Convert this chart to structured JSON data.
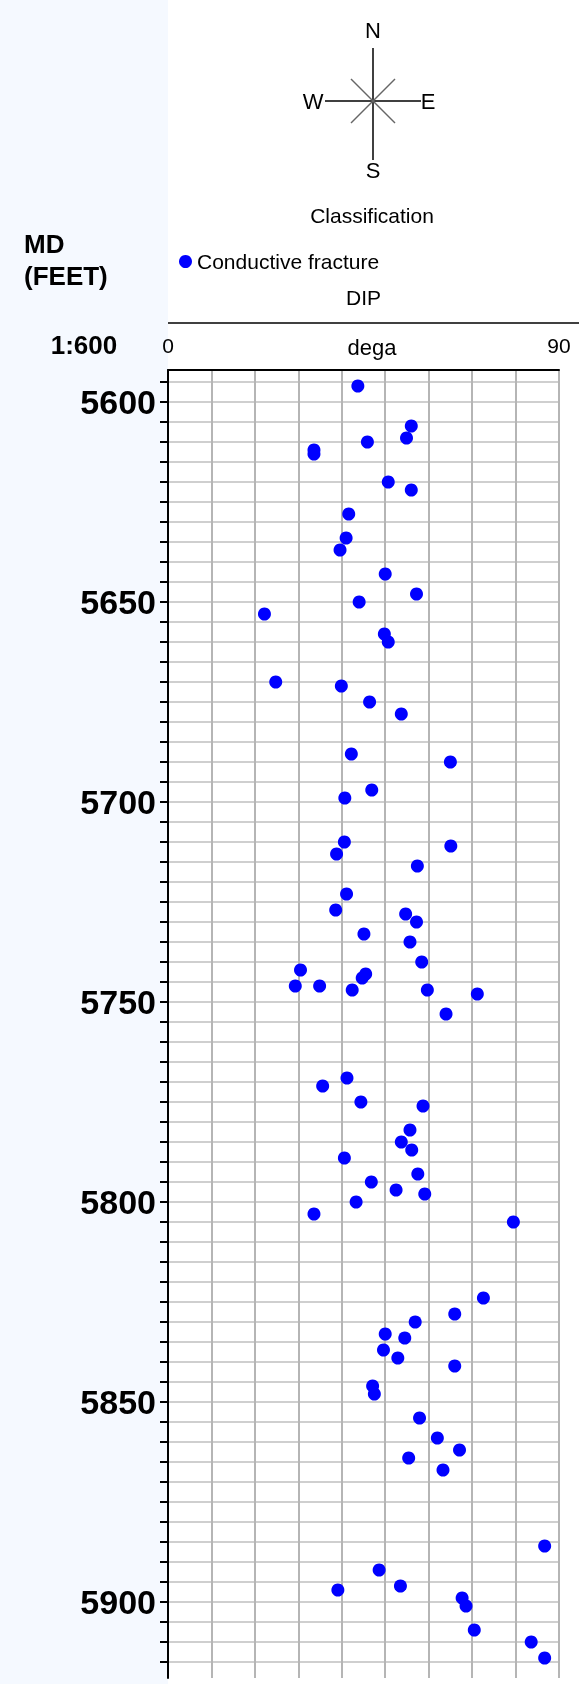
{
  "chart_data": {
    "type": "scatter",
    "ylabel": "MD (FEET)",
    "xlabel": "DIP",
    "legend_title": "Classification",
    "annotations": [
      "N",
      "E",
      "S",
      "W",
      "dega",
      "1:600"
    ],
    "xlim": [
      0,
      90
    ],
    "xticks": [
      0,
      {
        "value": 10,
        "label": null
      },
      {
        "value": 20,
        "label": null
      },
      {
        "value": 30,
        "label": null
      },
      {
        "value": 40,
        "label": null
      },
      {
        "value": 50,
        "label": null
      },
      {
        "value": 60,
        "label": null
      },
      {
        "value": 70,
        "label": null
      },
      {
        "value": 80,
        "label": null
      },
      90
    ],
    "ylim": [
      5919,
      5592
    ],
    "yticks": [
      {
        "value": 5595,
        "label": null
      },
      5600,
      {
        "value": 5605,
        "label": null
      },
      {
        "value": 5610,
        "label": null
      },
      {
        "value": 5615,
        "label": null
      },
      {
        "value": 5620,
        "label": null
      },
      {
        "value": 5625,
        "label": null
      },
      {
        "value": 5630,
        "label": null
      },
      {
        "value": 5635,
        "label": null
      },
      {
        "value": 5640,
        "label": null
      },
      {
        "value": 5645,
        "label": null
      },
      5650,
      {
        "value": 5655,
        "label": null
      },
      {
        "value": 5660,
        "label": null
      },
      {
        "value": 5665,
        "label": null
      },
      {
        "value": 5670,
        "label": null
      },
      {
        "value": 5675,
        "label": null
      },
      {
        "value": 5680,
        "label": null
      },
      {
        "value": 5685,
        "label": null
      },
      {
        "value": 5690,
        "label": null
      },
      {
        "value": 5695,
        "label": null
      },
      5700,
      {
        "value": 5705,
        "label": null
      },
      {
        "value": 5710,
        "label": null
      },
      {
        "value": 5715,
        "label": null
      },
      {
        "value": 5720,
        "label": null
      },
      {
        "value": 5725,
        "label": null
      },
      {
        "value": 5730,
        "label": null
      },
      {
        "value": 5735,
        "label": null
      },
      {
        "value": 5740,
        "label": null
      },
      {
        "value": 5745,
        "label": null
      },
      5750,
      {
        "value": 5755,
        "label": null
      },
      {
        "value": 5760,
        "label": null
      },
      {
        "value": 5765,
        "label": null
      },
      {
        "value": 5770,
        "label": null
      },
      {
        "value": 5775,
        "label": null
      },
      {
        "value": 5780,
        "label": null
      },
      {
        "value": 5785,
        "label": null
      },
      {
        "value": 5790,
        "label": null
      },
      {
        "value": 5795,
        "label": null
      },
      5800,
      {
        "value": 5805,
        "label": null
      },
      {
        "value": 5810,
        "label": null
      },
      {
        "value": 5815,
        "label": null
      },
      {
        "value": 5820,
        "label": null
      },
      {
        "value": 5825,
        "label": null
      },
      {
        "value": 5830,
        "label": null
      },
      {
        "value": 5835,
        "label": null
      },
      {
        "value": 5840,
        "label": null
      },
      {
        "value": 5845,
        "label": null
      },
      5850,
      {
        "value": 5855,
        "label": null
      },
      {
        "value": 5860,
        "label": null
      },
      {
        "value": 5865,
        "label": null
      },
      {
        "value": 5870,
        "label": null
      },
      {
        "value": 5875,
        "label": null
      },
      {
        "value": 5880,
        "label": null
      },
      {
        "value": 5885,
        "label": null
      },
      {
        "value": 5890,
        "label": null
      },
      {
        "value": 5895,
        "label": null
      },
      5900,
      {
        "value": 5905,
        "label": null
      },
      {
        "value": 5910,
        "label": null
      },
      {
        "value": 5915,
        "label": null
      }
    ],
    "grid": true,
    "legend": "top",
    "marker": "circle",
    "series": [
      {
        "name": "Conductive fracture",
        "color": "#0000ff",
        "x": [
          43.7,
          56,
          54.9,
          45.9,
          33.6,
          33.6,
          50.7,
          56,
          41.6,
          41,
          39.6,
          50,
          57.2,
          44,
          22.2,
          49.8,
          50.7,
          24.8,
          39.9,
          46.4,
          53.7,
          42.2,
          65,
          46.9,
          40.7,
          40.6,
          38.8,
          65.1,
          57.4,
          41.1,
          38.6,
          54.7,
          57.2,
          45.1,
          55.7,
          58.4,
          30.5,
          45.5,
          44.7,
          29.3,
          34.9,
          42.4,
          59.7,
          71.2,
          64,
          41.2,
          35.6,
          44.4,
          58.7,
          55.7,
          53.7,
          56.1,
          40.6,
          57.5,
          46.8,
          52.5,
          59.1,
          43.3,
          33.6,
          79.5,
          72.6,
          66,
          56.9,
          50,
          54.5,
          49.6,
          52.9,
          66,
          47.1,
          47.5,
          57.9,
          62,
          67.1,
          55.4,
          63.3,
          86.7,
          48.6,
          39.1,
          53.5,
          67.7,
          68.6,
          70.5,
          83.6,
          86.7
        ],
        "values": [
          5596,
          5606,
          5609,
          5610,
          5612,
          5613,
          5620,
          5622,
          5628,
          5634,
          5637,
          5643,
          5648,
          5650,
          5653,
          5658,
          5660,
          5670,
          5671,
          5675,
          5678,
          5688,
          5690,
          5697,
          5699,
          5710,
          5713,
          5711,
          5716,
          5723,
          5727,
          5728,
          5730,
          5733,
          5735,
          5740,
          5742,
          5743,
          5744,
          5746,
          5746,
          5747,
          5747,
          5748,
          5753,
          5769,
          5771,
          5775,
          5776,
          5782,
          5785,
          5787,
          5789,
          5793,
          5795,
          5797,
          5798,
          5800,
          5803,
          5805,
          5824,
          5828,
          5830,
          5833,
          5834,
          5837,
          5839,
          5841,
          5846,
          5848,
          5854,
          5859,
          5862,
          5864,
          5867,
          5886,
          5892,
          5897,
          5896,
          5899,
          5901,
          5907,
          5910,
          5914
        ]
      }
    ]
  }
}
